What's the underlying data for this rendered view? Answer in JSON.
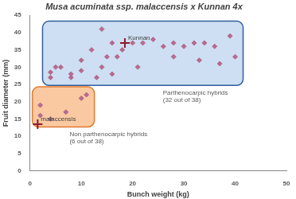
{
  "chart_data": {
    "type": "scatter",
    "title": "Musa acuminata ssp. malaccensis x Kunnan 4x",
    "x_label": "Bunch weight (kg)",
    "y_label": "Fruit diameter (mm)",
    "xlim": [
      0,
      50
    ],
    "xticks": [
      0,
      10,
      20,
      30,
      40,
      50
    ],
    "ylim": [
      0,
      45
    ],
    "yticks": [
      0,
      5,
      10,
      15,
      20,
      25,
      30,
      35,
      40,
      45
    ],
    "grid": false,
    "series": [
      {
        "name": "Parthenocarpic hybrids (32 out of 38)",
        "color": "#b56a8e",
        "marker": "diamond",
        "x": [
          4,
          4,
          5,
          6,
          8,
          8,
          10,
          10,
          12,
          13,
          14,
          14,
          15,
          16,
          16,
          17,
          18,
          20,
          21,
          22,
          24,
          26,
          28,
          28,
          30,
          32,
          33,
          34,
          36,
          37,
          39,
          40
        ],
        "y": [
          27,
          28.5,
          30,
          30,
          27,
          28,
          29,
          32,
          35,
          27,
          41,
          30,
          33,
          28,
          37,
          33,
          35,
          37,
          30,
          37,
          38,
          36,
          33,
          37,
          36,
          37,
          32,
          37,
          36,
          31,
          39,
          33
        ]
      },
      {
        "name": "Non parthenocarpic hybrids (6 out of 38)",
        "color": "#b56a8e",
        "marker": "diamond",
        "x": [
          2,
          2,
          4,
          7,
          10,
          11
        ],
        "y": [
          19,
          16,
          15,
          17,
          21,
          22
        ]
      },
      {
        "color": "#8b1a2b",
        "marker": "cross",
        "labels": [
          "Kunnan",
          "malaccensis"
        ],
        "x": [
          18.5,
          1.5
        ],
        "y": [
          37,
          13.5
        ]
      }
    ]
  }
}
